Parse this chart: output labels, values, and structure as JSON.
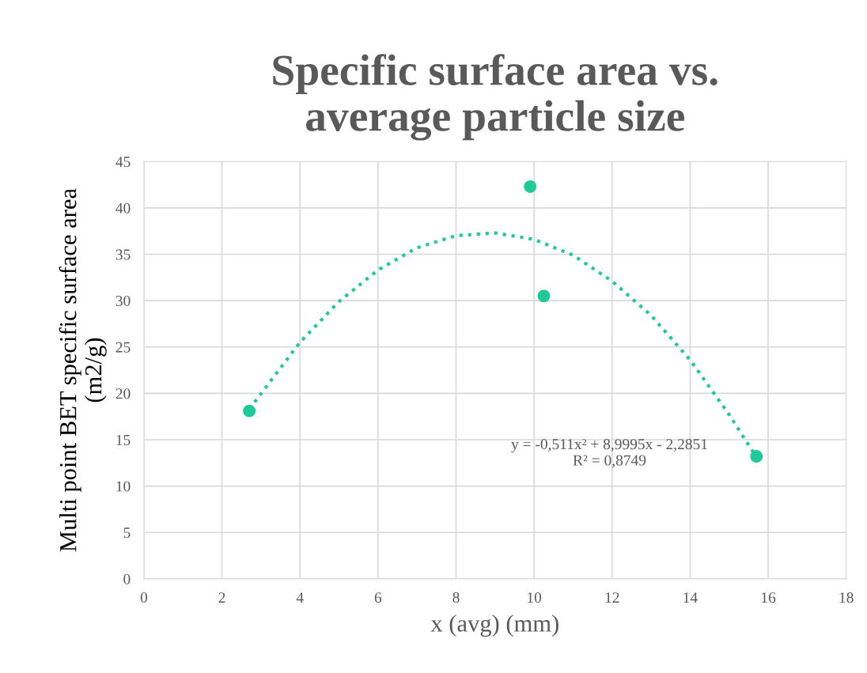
{
  "chart_data": {
    "type": "scatter",
    "title": "Specific surface area vs.\naverage particle size",
    "xlabel": "x (avg) (mm)",
    "ylabel": "Multi point BET specific surface area\n(m2/g)",
    "series": [
      {
        "color": "#1fc99a",
        "marker": "circle",
        "x": [
          2.7,
          9.9,
          10.25,
          15.7
        ],
        "values": [
          18.1,
          42.3,
          30.5,
          13.2
        ]
      },
      {
        "type": "line",
        "color": "#1fc99a",
        "line_style": "dotted",
        "marker": "none",
        "x": [
          2.7,
          4,
          5,
          6,
          7,
          8,
          9,
          10,
          11,
          12,
          13,
          14,
          15,
          15.7
        ],
        "values": [
          18.3,
          25.5,
          29.9,
          33.3,
          35.7,
          37.0,
          37.3,
          36.6,
          34.9,
          32.1,
          28.4,
          23.6,
          17.7,
          13.1
        ]
      }
    ],
    "annotations": [
      "y = -0,511x² + 8,9995x - 2,2851\nR² = 0,8749"
    ],
    "xlim": [
      0,
      18
    ],
    "xticks": [
      0,
      2,
      4,
      6,
      8,
      10,
      12,
      14,
      16,
      18
    ],
    "ylim": [
      0,
      45
    ],
    "yticks": [
      0,
      5,
      10,
      15,
      20,
      25,
      30,
      35,
      40,
      45
    ],
    "grid": true,
    "legend": false
  }
}
